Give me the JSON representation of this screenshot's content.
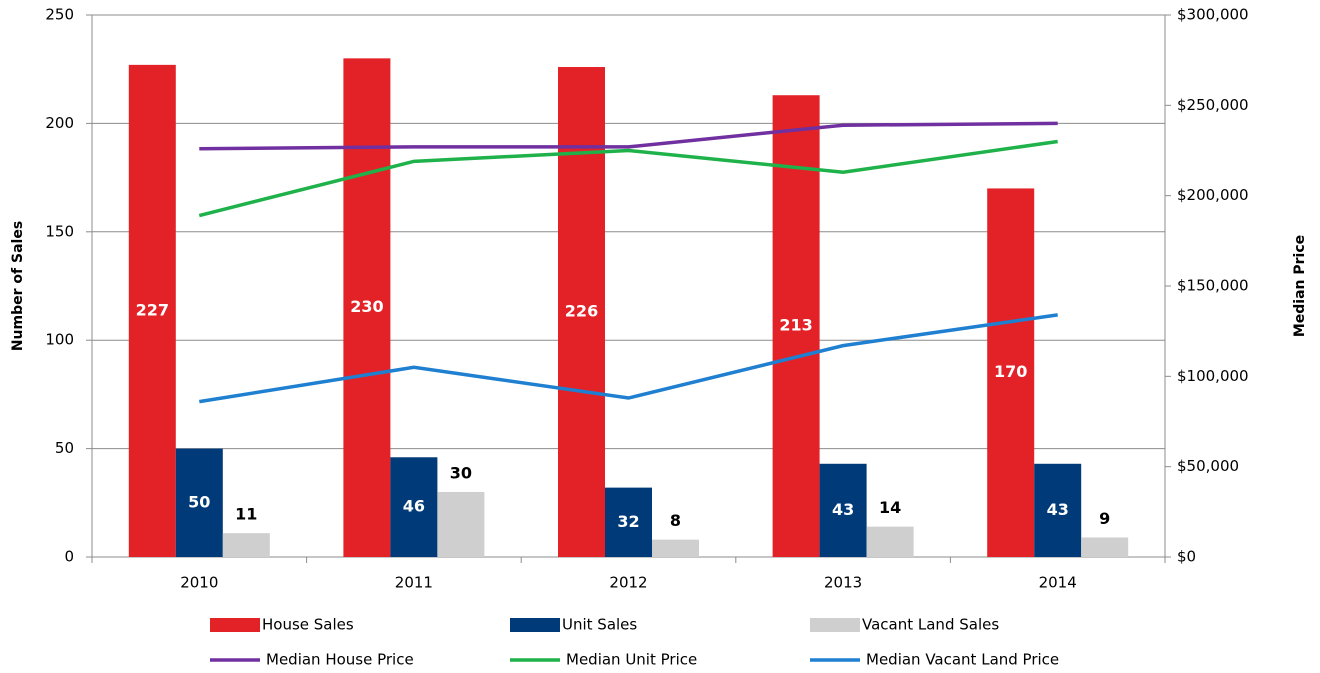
{
  "chart_data": {
    "type": "bar",
    "categories": [
      "2010",
      "2011",
      "2012",
      "2013",
      "2014"
    ],
    "ylabel": "Number of Sales",
    "y2label": "Median Price",
    "ylim": [
      0,
      250
    ],
    "yticks": [
      0,
      50,
      100,
      150,
      200,
      250
    ],
    "y2lim": [
      0,
      300000
    ],
    "y2ticks": [
      {
        "value": 0,
        "label": "$0"
      },
      {
        "value": 50000,
        "label": "$50,000"
      },
      {
        "value": 100000,
        "label": "$100,000"
      },
      {
        "value": 150000,
        "label": "$150,000"
      },
      {
        "value": 200000,
        "label": "$200,000"
      },
      {
        "value": 250000,
        "label": "$250,000"
      },
      {
        "value": 300000,
        "label": "$300,000"
      }
    ],
    "grid": true,
    "legend": "bottom",
    "series": [
      {
        "name": "House Sales",
        "type": "bar",
        "color": "#e32227",
        "values": [
          227,
          230,
          226,
          213,
          170
        ]
      },
      {
        "name": "Unit Sales",
        "type": "bar",
        "color": "#003a78",
        "values": [
          50,
          46,
          32,
          43,
          43
        ]
      },
      {
        "name": "Vacant Land Sales",
        "type": "bar",
        "color": "#cfcfcf",
        "values": [
          11,
          30,
          8,
          14,
          9
        ]
      },
      {
        "name": "Median House Price",
        "type": "line",
        "axis": "y2",
        "color": "#7030a0",
        "values": [
          226000,
          227000,
          227000,
          239000,
          240000
        ]
      },
      {
        "name": "Median Unit Price",
        "type": "line",
        "axis": "y2",
        "color": "#1fb24a",
        "values": [
          189000,
          219000,
          225000,
          213000,
          230000
        ]
      },
      {
        "name": "Median Vacant Land Price",
        "type": "line",
        "axis": "y2",
        "color": "#1f7fd0",
        "values": [
          86000,
          105000,
          88000,
          117000,
          134000
        ]
      }
    ]
  }
}
